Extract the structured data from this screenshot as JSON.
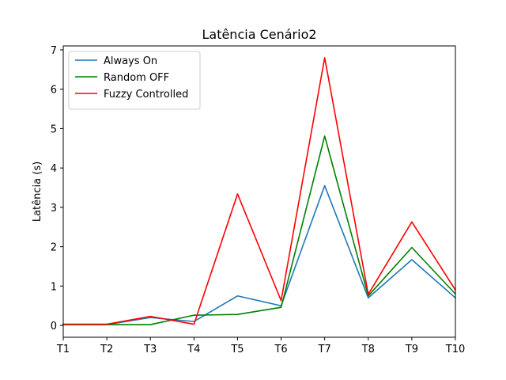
{
  "chart_data": {
    "type": "line",
    "title": "Latência Cenário2",
    "xlabel": "",
    "ylabel": "Latência (s)",
    "categories": [
      "T1",
      "T2",
      "T3",
      "T4",
      "T5",
      "T6",
      "T7",
      "T8",
      "T9",
      "T10"
    ],
    "ylim": [
      -0.3,
      7.1
    ],
    "yticks": [
      0,
      1,
      2,
      3,
      4,
      5,
      6,
      7
    ],
    "grid": false,
    "legend_position": "top-left",
    "series": [
      {
        "name": "Always On",
        "color": "#1f77b4",
        "values": [
          0.02,
          0.02,
          0.2,
          0.1,
          0.75,
          0.5,
          3.55,
          0.7,
          1.67,
          0.7
        ]
      },
      {
        "name": "Random OFF",
        "color": "#008000",
        "values": [
          0.02,
          0.02,
          0.02,
          0.26,
          0.28,
          0.46,
          4.81,
          0.75,
          1.98,
          0.8
        ]
      },
      {
        "name": "Fuzzy Controlled",
        "color": "#ff0000",
        "values": [
          0.03,
          0.03,
          0.23,
          0.03,
          3.34,
          0.63,
          6.8,
          0.79,
          2.63,
          0.9
        ]
      }
    ]
  }
}
